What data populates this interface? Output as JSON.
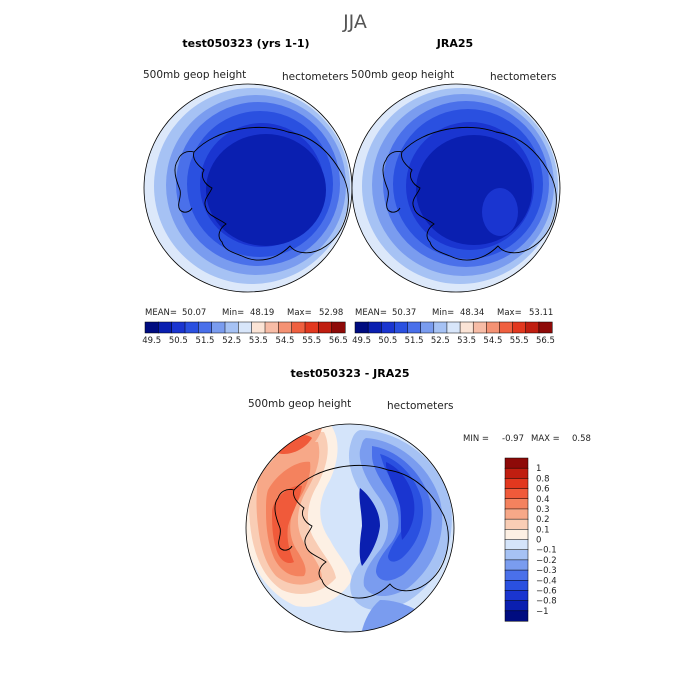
{
  "title": "JJA",
  "panels": [
    {
      "id": "model",
      "title": "test050323 (yrs 1-1)",
      "field_label": "500mb geop height",
      "units_label": "hectometers",
      "stats": {
        "mean_label": "MEAN=",
        "mean": "50.07",
        "min_label": "Min=",
        "min": "48.19",
        "max_label": "Max=",
        "max": "52.98"
      }
    },
    {
      "id": "obs",
      "title": "JRA25",
      "field_label": "500mb geop height",
      "units_label": "hectometers",
      "stats": {
        "mean_label": "MEAN=",
        "mean": "50.37",
        "min_label": "Min=",
        "min": "48.34",
        "max_label": "Max=",
        "max": "53.11"
      }
    },
    {
      "id": "diff",
      "title": "test050323 - JRA25",
      "field_label": "500mb geop height",
      "units_label": "hectometers",
      "stats": {
        "min_label": "MIN =",
        "min": "-0.97",
        "max_label": "MAX =",
        "max": "0.58"
      }
    }
  ],
  "chart_data": [
    {
      "type": "heatmap",
      "projection": "south-polar-stereographic",
      "title": "test050323 (yrs 1-1)",
      "variable": "500mb geop height",
      "units": "hectometers",
      "season": "JJA",
      "mean": 50.07,
      "min": 48.19,
      "max": 52.98,
      "colorbar": {
        "orientation": "horizontal",
        "levels": [
          49.5,
          50,
          50.5,
          51,
          51.5,
          52,
          52.5,
          53,
          53.5,
          54,
          54.5,
          55,
          55.5,
          56,
          56.5
        ],
        "tick_labels": [
          "49.5",
          "50.5",
          "51.5",
          "52.5",
          "53.5",
          "54.5",
          "55.5",
          "56.5"
        ],
        "colors": [
          "#000c80",
          "#0a1fb0",
          "#1a35d0",
          "#2a50e0",
          "#4a70ea",
          "#7a9cef",
          "#a6c2f4",
          "#d8e6fa",
          "#fbe4d6",
          "#f7bca6",
          "#f49274",
          "#ef6040",
          "#e2381f",
          "#c01e10",
          "#8e0a08"
        ]
      }
    },
    {
      "type": "heatmap",
      "projection": "south-polar-stereographic",
      "title": "JRA25",
      "variable": "500mb geop height",
      "units": "hectometers",
      "season": "JJA",
      "mean": 50.37,
      "min": 48.34,
      "max": 53.11,
      "colorbar": {
        "orientation": "horizontal",
        "levels": [
          49.5,
          50,
          50.5,
          51,
          51.5,
          52,
          52.5,
          53,
          53.5,
          54,
          54.5,
          55,
          55.5,
          56,
          56.5
        ],
        "tick_labels": [
          "49.5",
          "50.5",
          "51.5",
          "52.5",
          "53.5",
          "54.5",
          "55.5",
          "56.5"
        ],
        "colors": [
          "#000c80",
          "#0a1fb0",
          "#1a35d0",
          "#2a50e0",
          "#4a70ea",
          "#7a9cef",
          "#a6c2f4",
          "#d8e6fa",
          "#fbe4d6",
          "#f7bca6",
          "#f49274",
          "#ef6040",
          "#e2381f",
          "#c01e10",
          "#8e0a08"
        ]
      }
    },
    {
      "type": "heatmap",
      "projection": "south-polar-stereographic",
      "title": "test050323 - JRA25",
      "variable": "500mb geop height",
      "units": "hectometers",
      "season": "JJA",
      "min": -0.97,
      "max": 0.58,
      "colorbar": {
        "orientation": "vertical",
        "tick_labels": [
          "1",
          "0.8",
          "0.6",
          "0.4",
          "0.3",
          "0.2",
          "0.1",
          "0",
          "−0.1",
          "−0.2",
          "−0.3",
          "−0.4",
          "−0.6",
          "−0.8",
          "−1"
        ],
        "colors": [
          "#8e0a08",
          "#c01e10",
          "#e2381f",
          "#f05a3a",
          "#f4825e",
          "#f7a888",
          "#f9cdb5",
          "#fdf0e4",
          "#d4e4fa",
          "#a6c2f4",
          "#7a9cef",
          "#4a70ea",
          "#2a50e0",
          "#1a35d0",
          "#0a1fb0",
          "#000c80"
        ]
      }
    }
  ]
}
